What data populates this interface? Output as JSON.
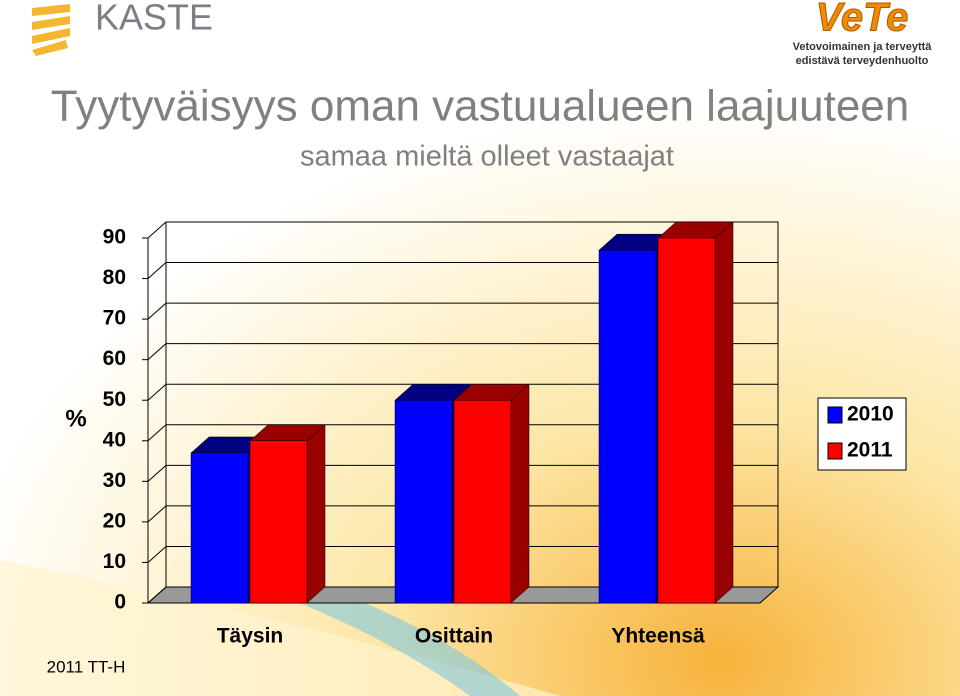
{
  "header": {
    "left_logo": "KASTE",
    "right_logo": "VeTe",
    "right_tagline": [
      "Vetovoimainen ja terveyttä",
      "edistävä terveydenhuolto"
    ]
  },
  "chart_data": {
    "type": "bar3d",
    "title": "Tyytyväisyys oman vastuualueen laajuuteen",
    "subtitle": "samaa mieltä olleet vastaajat",
    "y_label": "%",
    "categories": [
      "Täysin",
      "Osittain",
      "Yhteensä"
    ],
    "series": [
      {
        "name": "2010",
        "color": "#0000ff",
        "values": [
          37,
          50,
          87
        ]
      },
      {
        "name": "2011",
        "color": "#ff0000",
        "values": [
          40,
          50,
          90
        ]
      }
    ],
    "ylim": [
      0,
      90
    ],
    "yticks": [
      0,
      10,
      20,
      30,
      40,
      50,
      60,
      70,
      80,
      90
    ],
    "grid": true,
    "legend": "right"
  },
  "footer": "2011 TT-H"
}
